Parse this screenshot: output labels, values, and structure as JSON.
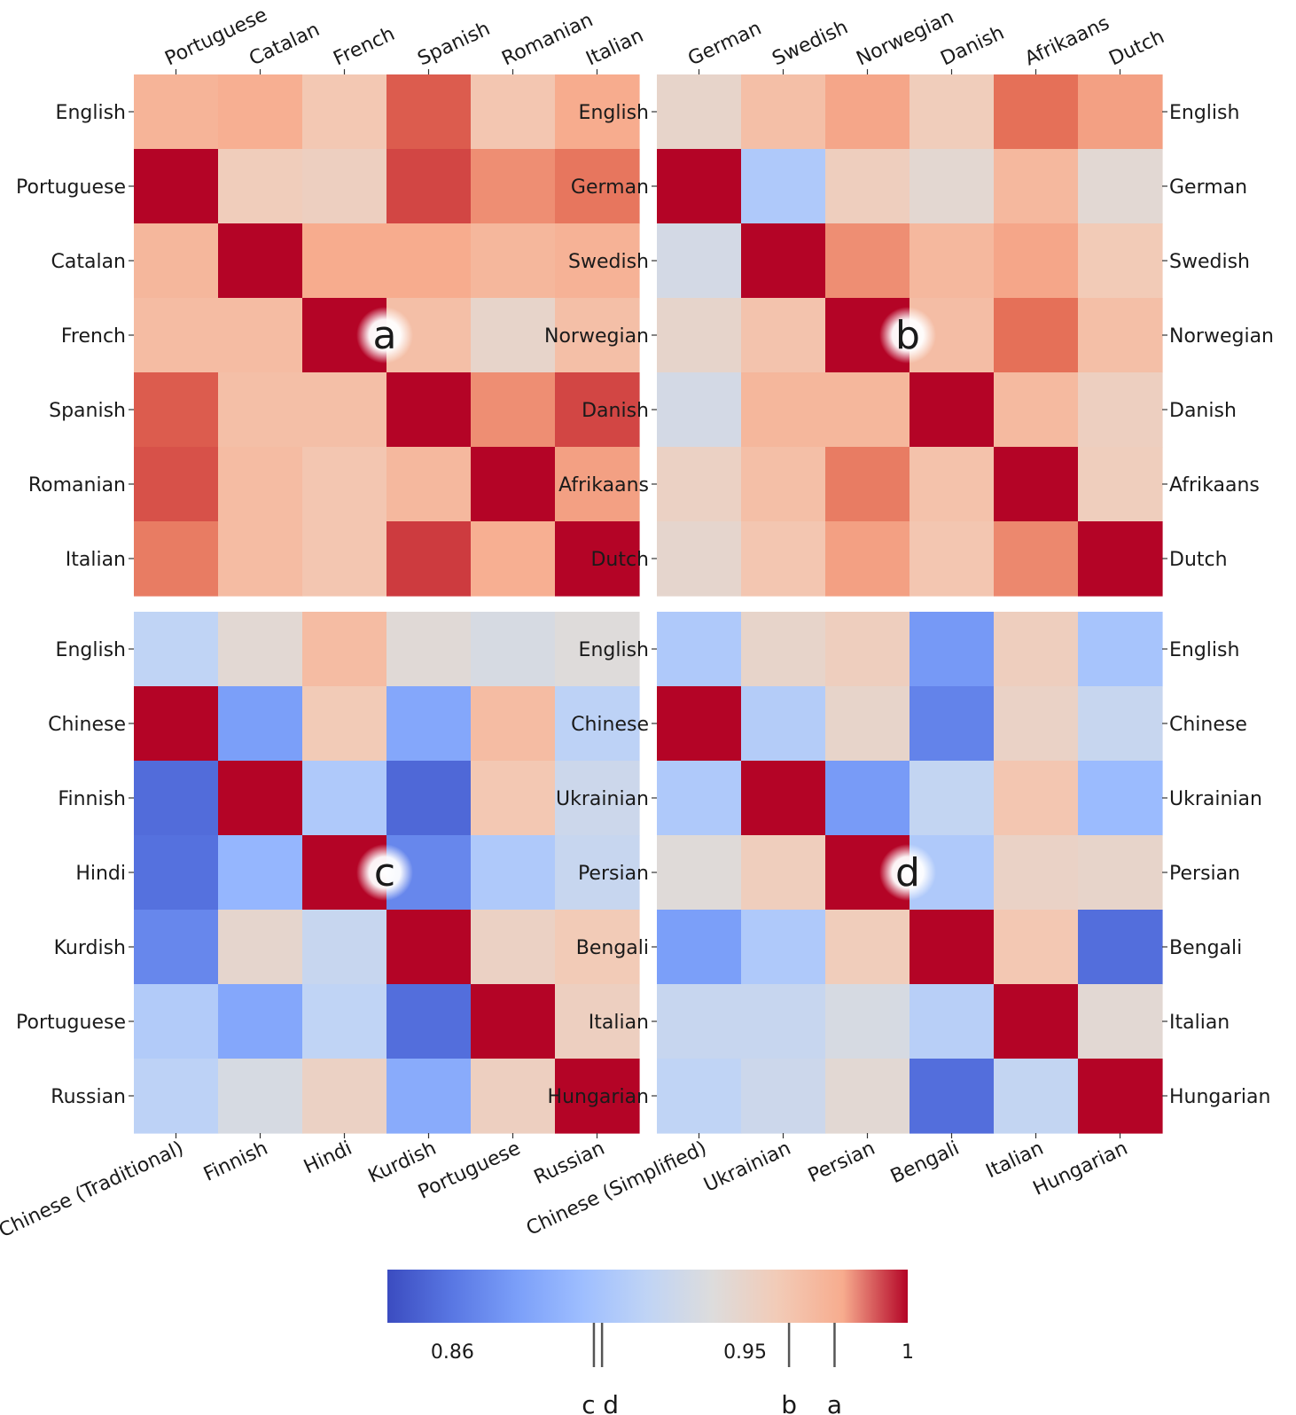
{
  "chart_data": [
    {
      "type": "heatmap",
      "panel": "a",
      "top_labels": [
        "Portuguese",
        "Catalan",
        "French",
        "Spanish",
        "Romanian",
        "Italian"
      ],
      "row_labels": [
        "English",
        "Portuguese",
        "Catalan",
        "French",
        "Spanish",
        "Romanian",
        "Italian"
      ],
      "values": [
        [
          0.975,
          0.978,
          0.962,
          0.992,
          0.963,
          0.98
        ],
        [
          1.0,
          0.958,
          0.955,
          0.994,
          0.985,
          0.989
        ],
        [
          0.973,
          1.0,
          0.98,
          0.98,
          0.973,
          0.976
        ],
        [
          0.97,
          0.97,
          1.0,
          0.968,
          0.95,
          0.968
        ],
        [
          0.992,
          0.968,
          0.968,
          1.0,
          0.985,
          0.994
        ],
        [
          0.993,
          0.97,
          0.963,
          0.972,
          1.0,
          0.982
        ],
        [
          0.988,
          0.97,
          0.963,
          0.995,
          0.978,
          1.0
        ]
      ]
    },
    {
      "type": "heatmap",
      "panel": "b",
      "top_labels": [
        "German",
        "Swedish",
        "Norwegian",
        "Danish",
        "Afrikaans",
        "Dutch"
      ],
      "row_labels": [
        "English",
        "German",
        "Swedish",
        "Norwegian",
        "Danish",
        "Afrikaans",
        "Dutch"
      ],
      "right_labels": [
        "English",
        "German",
        "Swedish",
        "Norwegian",
        "Danish",
        "Afrikaans",
        "Dutch"
      ],
      "values": [
        [
          0.95,
          0.968,
          0.981,
          0.958,
          0.99,
          0.982
        ],
        [
          1.0,
          0.91,
          0.956,
          0.946,
          0.972,
          0.945
        ],
        [
          0.933,
          1.0,
          0.985,
          0.972,
          0.981,
          0.96
        ],
        [
          0.949,
          0.965,
          1.0,
          0.969,
          0.99,
          0.968
        ],
        [
          0.933,
          0.973,
          0.973,
          1.0,
          0.971,
          0.955
        ],
        [
          0.953,
          0.968,
          0.988,
          0.966,
          1.0,
          0.957
        ],
        [
          0.948,
          0.963,
          0.982,
          0.963,
          0.986,
          1.0
        ]
      ]
    },
    {
      "type": "heatmap",
      "panel": "c",
      "bottom_labels": [
        "Chinese (Traditional)",
        "Finnish",
        "Hindi",
        "Kurdish",
        "Portuguese",
        "Russian"
      ],
      "row_labels": [
        "English",
        "Chinese",
        "Finnish",
        "Hindi",
        "Kurdish",
        "Portuguese",
        "Russian"
      ],
      "values": [
        [
          0.92,
          0.945,
          0.97,
          0.943,
          0.935,
          0.941
        ],
        [
          1.0,
          0.88,
          0.96,
          0.885,
          0.97,
          0.918
        ],
        [
          0.855,
          1.0,
          0.91,
          0.853,
          0.962,
          0.928
        ],
        [
          0.857,
          0.895,
          1.0,
          0.868,
          0.91,
          0.925
        ],
        [
          0.868,
          0.948,
          0.925,
          1.0,
          0.953,
          0.96
        ],
        [
          0.912,
          0.885,
          0.92,
          0.856,
          1.0,
          0.955
        ],
        [
          0.918,
          0.935,
          0.953,
          0.888,
          0.955,
          1.0
        ]
      ]
    },
    {
      "type": "heatmap",
      "panel": "d",
      "bottom_labels": [
        "Chinese (Simplified)",
        "Ukrainian",
        "Persian",
        "Bengali",
        "Italian",
        "Hungarian"
      ],
      "row_labels": [
        "English",
        "Chinese",
        "Ukrainian",
        "Persian",
        "Bengali",
        "Italian",
        "Hungarian"
      ],
      "right_labels": [
        "English",
        "Chinese",
        "Ukrainian",
        "Persian",
        "Bengali",
        "Italian",
        "Hungarian"
      ],
      "values": [
        [
          0.91,
          0.95,
          0.956,
          0.877,
          0.956,
          0.905
        ],
        [
          1.0,
          0.913,
          0.95,
          0.866,
          0.952,
          0.925
        ],
        [
          0.91,
          1.0,
          0.878,
          0.922,
          0.963,
          0.898
        ],
        [
          0.942,
          0.957,
          1.0,
          0.91,
          0.952,
          0.95
        ],
        [
          0.88,
          0.91,
          0.958,
          1.0,
          0.962,
          0.856
        ],
        [
          0.925,
          0.925,
          0.935,
          0.915,
          1.0,
          0.945
        ],
        [
          0.92,
          0.928,
          0.945,
          0.856,
          0.922,
          1.0
        ]
      ]
    }
  ],
  "panel_markers": [
    "a",
    "b",
    "c",
    "d"
  ],
  "colorbar": {
    "colormap": "coolwarm",
    "range": [
      0.84,
      1.0
    ],
    "ticks": [
      {
        "value": 0.86,
        "label": "0.86"
      },
      {
        "value": 0.95,
        "label": "0.95"
      },
      {
        "value": 1.0,
        "label": "1"
      }
    ],
    "markers": [
      {
        "value": 0.9035,
        "label": "c"
      },
      {
        "value": 0.906,
        "label": "d"
      },
      {
        "value": 0.9635,
        "label": "b"
      },
      {
        "value": 0.9775,
        "label": "a"
      }
    ],
    "marker_color": "#555555"
  }
}
